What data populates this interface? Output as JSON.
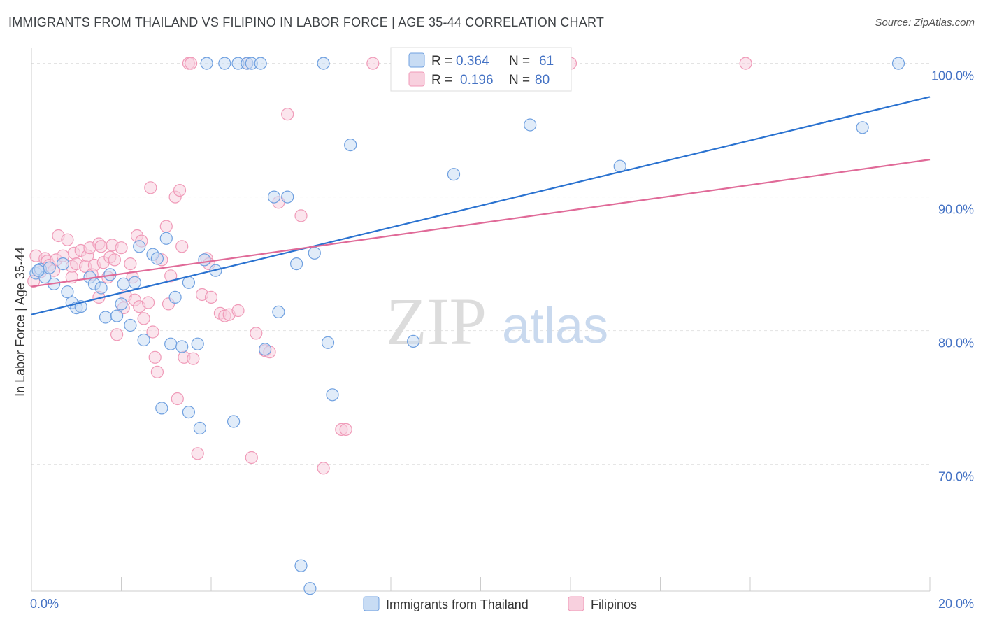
{
  "header": {
    "title": "IMMIGRANTS FROM THAILAND VS FILIPINO IN LABOR FORCE | AGE 35-44 CORRELATION CHART",
    "source": "Source: ZipAtlas.com"
  },
  "watermark": {
    "zip": "ZIP",
    "atlas": "atlas"
  },
  "chart_data": {
    "type": "scatter",
    "title": "IMMIGRANTS FROM THAILAND VS FILIPINO IN LABOR FORCE | AGE 35-44 CORRELATION CHART",
    "xlabel": "",
    "ylabel": "In Labor Force | Age 35-44",
    "xlim": [
      0,
      20
    ],
    "ylim": [
      60.5,
      101.5
    ],
    "x_tick_labels": [
      "0.0%",
      "20.0%"
    ],
    "y_ticks": [
      70,
      80,
      90,
      100
    ],
    "y_tick_labels": [
      "70.0%",
      "80.0%",
      "90.0%",
      "100.0%"
    ],
    "grid": true,
    "legend_position": "top-center",
    "series": [
      {
        "name": "Immigrants from Thailand",
        "color": "#6fa0e0",
        "line_color": "#2a72d0",
        "R": "0.364",
        "N": "61",
        "trend": {
          "x": [
            0,
            20
          ],
          "y": [
            81.2,
            97.5
          ]
        },
        "points": [
          [
            0.1,
            84.3
          ],
          [
            0.2,
            84.6
          ],
          [
            0.3,
            84.0
          ],
          [
            0.4,
            84.7
          ],
          [
            0.5,
            83.5
          ],
          [
            0.7,
            85.0
          ],
          [
            0.8,
            82.9
          ],
          [
            0.9,
            82.1
          ],
          [
            1.0,
            81.7
          ],
          [
            1.1,
            81.8
          ],
          [
            1.3,
            84.0
          ],
          [
            1.4,
            83.5
          ],
          [
            1.55,
            83.2
          ],
          [
            1.65,
            81.0
          ],
          [
            1.75,
            84.2
          ],
          [
            1.9,
            81.1
          ],
          [
            2.0,
            82.0
          ],
          [
            2.05,
            83.5
          ],
          [
            2.2,
            80.4
          ],
          [
            2.3,
            83.6
          ],
          [
            2.4,
            86.3
          ],
          [
            2.5,
            79.3
          ],
          [
            2.7,
            85.7
          ],
          [
            2.8,
            85.4
          ],
          [
            2.9,
            74.2
          ],
          [
            3.0,
            86.9
          ],
          [
            3.1,
            79.0
          ],
          [
            3.2,
            82.5
          ],
          [
            3.35,
            78.8
          ],
          [
            3.5,
            73.9
          ],
          [
            3.5,
            83.6
          ],
          [
            3.7,
            79.0
          ],
          [
            3.75,
            72.7
          ],
          [
            3.85,
            85.3
          ],
          [
            3.9,
            100.0
          ],
          [
            4.1,
            84.5
          ],
          [
            4.3,
            100.0
          ],
          [
            4.5,
            73.2
          ],
          [
            4.6,
            100.0
          ],
          [
            4.8,
            100.0
          ],
          [
            4.9,
            100.0
          ],
          [
            5.1,
            100.0
          ],
          [
            5.2,
            78.6
          ],
          [
            5.4,
            90.0
          ],
          [
            5.5,
            81.4
          ],
          [
            5.7,
            90.0
          ],
          [
            5.9,
            85.0
          ],
          [
            6.0,
            62.4
          ],
          [
            6.2,
            60.7
          ],
          [
            6.3,
            85.8
          ],
          [
            6.5,
            100.0
          ],
          [
            6.6,
            79.1
          ],
          [
            6.7,
            75.2
          ],
          [
            7.1,
            93.9
          ],
          [
            8.5,
            79.2
          ],
          [
            9.4,
            91.7
          ],
          [
            11.1,
            95.4
          ],
          [
            13.1,
            92.3
          ],
          [
            18.5,
            95.2
          ],
          [
            19.3,
            100.0
          ],
          [
            0.15,
            84.5
          ]
        ]
      },
      {
        "name": "Filipinos",
        "color": "#f09ab8",
        "line_color": "#e06a98",
        "R": "0.196",
        "N": "80",
        "trend": {
          "x": [
            0,
            20
          ],
          "y": [
            83.3,
            92.8
          ]
        },
        "points": [
          [
            0.05,
            83.7
          ],
          [
            0.1,
            85.6
          ],
          [
            0.2,
            84.4
          ],
          [
            0.3,
            85.4
          ],
          [
            0.35,
            85.2
          ],
          [
            0.4,
            84.9
          ],
          [
            0.5,
            84.5
          ],
          [
            0.55,
            85.3
          ],
          [
            0.6,
            87.1
          ],
          [
            0.7,
            85.6
          ],
          [
            0.8,
            86.8
          ],
          [
            0.9,
            84.8
          ],
          [
            0.95,
            85.8
          ],
          [
            1.0,
            85.0
          ],
          [
            1.1,
            86.0
          ],
          [
            1.2,
            84.8
          ],
          [
            1.25,
            85.6
          ],
          [
            1.3,
            86.2
          ],
          [
            1.35,
            84.2
          ],
          [
            1.4,
            84.9
          ],
          [
            1.5,
            86.5
          ],
          [
            1.55,
            86.3
          ],
          [
            1.6,
            85.1
          ],
          [
            1.7,
            84.0
          ],
          [
            1.75,
            85.5
          ],
          [
            1.8,
            86.4
          ],
          [
            1.85,
            85.3
          ],
          [
            1.9,
            79.7
          ],
          [
            2.0,
            86.2
          ],
          [
            2.05,
            81.7
          ],
          [
            2.1,
            82.6
          ],
          [
            2.2,
            85.0
          ],
          [
            2.25,
            84.0
          ],
          [
            2.3,
            82.3
          ],
          [
            2.35,
            87.1
          ],
          [
            2.4,
            81.8
          ],
          [
            2.45,
            86.7
          ],
          [
            2.5,
            80.9
          ],
          [
            2.6,
            82.1
          ],
          [
            2.65,
            90.7
          ],
          [
            2.7,
            79.9
          ],
          [
            2.75,
            78.0
          ],
          [
            2.8,
            76.9
          ],
          [
            2.9,
            85.3
          ],
          [
            3.0,
            87.8
          ],
          [
            3.05,
            82.0
          ],
          [
            3.1,
            84.1
          ],
          [
            3.2,
            90.0
          ],
          [
            3.25,
            74.9
          ],
          [
            3.3,
            90.5
          ],
          [
            3.35,
            86.3
          ],
          [
            3.4,
            78.0
          ],
          [
            3.5,
            100.0
          ],
          [
            3.55,
            100.0
          ],
          [
            3.6,
            77.9
          ],
          [
            3.7,
            70.8
          ],
          [
            3.8,
            82.7
          ],
          [
            3.9,
            85.4
          ],
          [
            3.95,
            85.0
          ],
          [
            4.0,
            82.5
          ],
          [
            4.2,
            81.3
          ],
          [
            4.3,
            81.1
          ],
          [
            4.4,
            81.2
          ],
          [
            4.6,
            81.5
          ],
          [
            4.8,
            100.0
          ],
          [
            4.9,
            70.5
          ],
          [
            5.0,
            79.8
          ],
          [
            5.2,
            78.5
          ],
          [
            5.3,
            78.4
          ],
          [
            5.5,
            89.6
          ],
          [
            5.7,
            96.2
          ],
          [
            6.0,
            88.6
          ],
          [
            6.5,
            69.7
          ],
          [
            6.9,
            72.6
          ],
          [
            7.0,
            72.6
          ],
          [
            7.6,
            100.0
          ],
          [
            12.0,
            100.0
          ],
          [
            15.9,
            100.0
          ],
          [
            1.5,
            82.5
          ],
          [
            0.9,
            84.0
          ]
        ]
      }
    ]
  },
  "legend": {
    "r_label": "R =",
    "n_label": "N =",
    "series": [
      {
        "name": "Immigrants from Thailand",
        "r": "0.364",
        "n": "61"
      },
      {
        "name": "Filipinos",
        "r": "0.196",
        "n": "80"
      }
    ]
  },
  "colors": {
    "thailand_fill": "#c8dcf4",
    "thailand_stroke": "#6fa0e0",
    "filipino_fill": "#f8d0de",
    "filipino_stroke": "#f09ab8",
    "axis_label": "#4472c4",
    "grid": "#e2e2e2"
  }
}
